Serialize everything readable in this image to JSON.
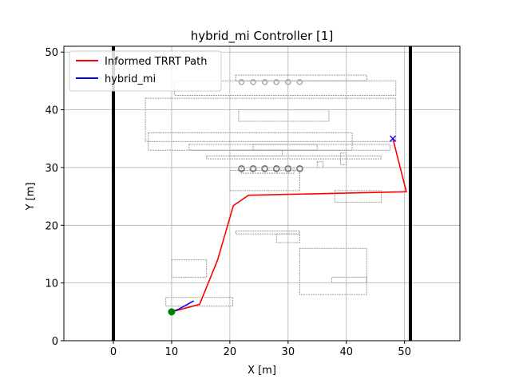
{
  "chart_data": {
    "type": "line",
    "title": "hybrid_mi Controller [1]",
    "xlabel": "X [m]",
    "ylabel": "Y [m]",
    "xlim": [
      -8.5,
      59.5
    ],
    "ylim": [
      0,
      51
    ],
    "xticks": [
      0,
      10,
      20,
      30,
      40,
      50
    ],
    "yticks": [
      0,
      10,
      20,
      30,
      40,
      50
    ],
    "grid": true,
    "legend_position": "top-left",
    "series": [
      {
        "name": "Informed TRRT Path",
        "color": "#ff0000",
        "x": [
          10.0,
          14.8,
          17.9,
          20.6,
          23.2,
          50.3,
          48.0
        ],
        "y": [
          5.0,
          6.3,
          14.0,
          23.4,
          25.2,
          25.8,
          35.0
        ]
      },
      {
        "name": "hybrid_mi",
        "color": "#0000ff",
        "x": [
          10.0,
          11.3,
          13.8
        ],
        "y": [
          5.0,
          5.5,
          6.9
        ]
      }
    ],
    "markers": {
      "start": {
        "x": 10.0,
        "y": 5.0,
        "shape": "circle",
        "color": "#008000"
      },
      "goal": {
        "x": 48.0,
        "y": 35.0,
        "shape": "x",
        "color": "#0000ff"
      }
    },
    "boundary": {
      "x_min": 0,
      "x_max": 51,
      "color": "#000000"
    }
  }
}
